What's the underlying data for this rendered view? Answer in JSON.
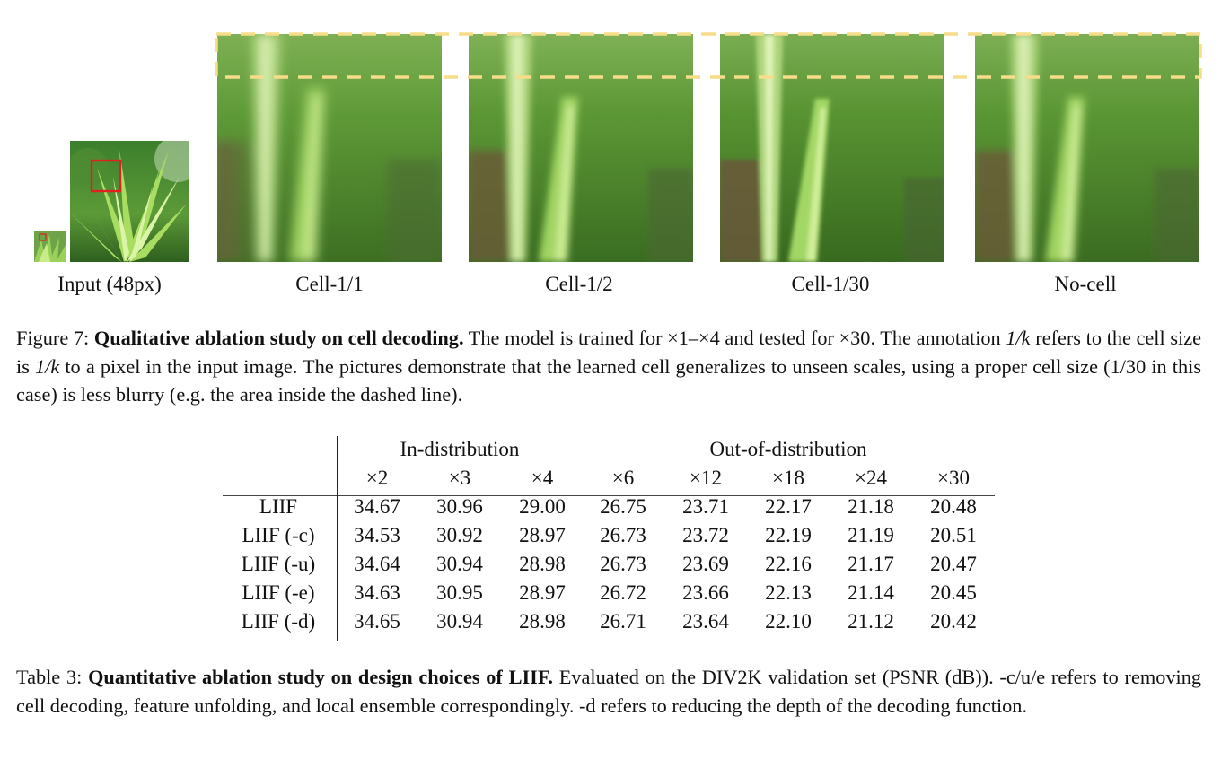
{
  "figure": {
    "labels": {
      "input": "Input (48px)",
      "cell_1_1": "Cell-1/1",
      "cell_1_2": "Cell-1/2",
      "cell_1_30": "Cell-1/30",
      "no_cell": "No-cell"
    },
    "colors": {
      "dash": "#f7dc8a",
      "crop_box": "#e02020",
      "grass_green": "#4f9a2a"
    },
    "caption": {
      "prefix": "Figure 7: ",
      "bold": "Qualitative ablation study on cell decoding.",
      "text_a": " The model is trained for ×1–×4 and tested for ×30. The annotation ",
      "math_a": "1/k",
      "text_b": " refers to the cell size is ",
      "math_b": "1/k",
      "text_c": " to a pixel in the input image.  The pictures demonstrate that the learned cell generalizes to unseen scales, using a proper cell size (1/30 in this case) is less blurry (e.g. the area inside the dashed line)."
    }
  },
  "table": {
    "group_in": "In-distribution",
    "group_out": "Out-of-distribution",
    "scales": [
      "×2",
      "×3",
      "×4",
      "×6",
      "×12",
      "×18",
      "×24",
      "×30"
    ],
    "rows": [
      {
        "name": "LIIF",
        "values": [
          "34.67",
          "30.96",
          "29.00",
          "26.75",
          "23.71",
          "22.17",
          "21.18",
          "20.48"
        ]
      },
      {
        "name": "LIIF (-c)",
        "values": [
          "34.53",
          "30.92",
          "28.97",
          "26.73",
          "23.72",
          "22.19",
          "21.19",
          "20.51"
        ]
      },
      {
        "name": "LIIF (-u)",
        "values": [
          "34.64",
          "30.94",
          "28.98",
          "26.73",
          "23.69",
          "22.16",
          "21.17",
          "20.47"
        ]
      },
      {
        "name": "LIIF (-e)",
        "values": [
          "34.63",
          "30.95",
          "28.97",
          "26.72",
          "23.66",
          "22.13",
          "21.14",
          "20.45"
        ]
      },
      {
        "name": "LIIF (-d)",
        "values": [
          "34.65",
          "30.94",
          "28.98",
          "26.71",
          "23.64",
          "22.10",
          "21.12",
          "20.42"
        ]
      }
    ],
    "caption": {
      "prefix": "Table 3: ",
      "bold": "Quantitative ablation study on design choices of LIIF.",
      "text": " Evaluated on the DIV2K validation set (PSNR (dB)). -c/u/e refers to removing cell decoding, feature unfolding, and local ensemble correspondingly.  -d refers to reducing the depth of the decoding function."
    }
  }
}
